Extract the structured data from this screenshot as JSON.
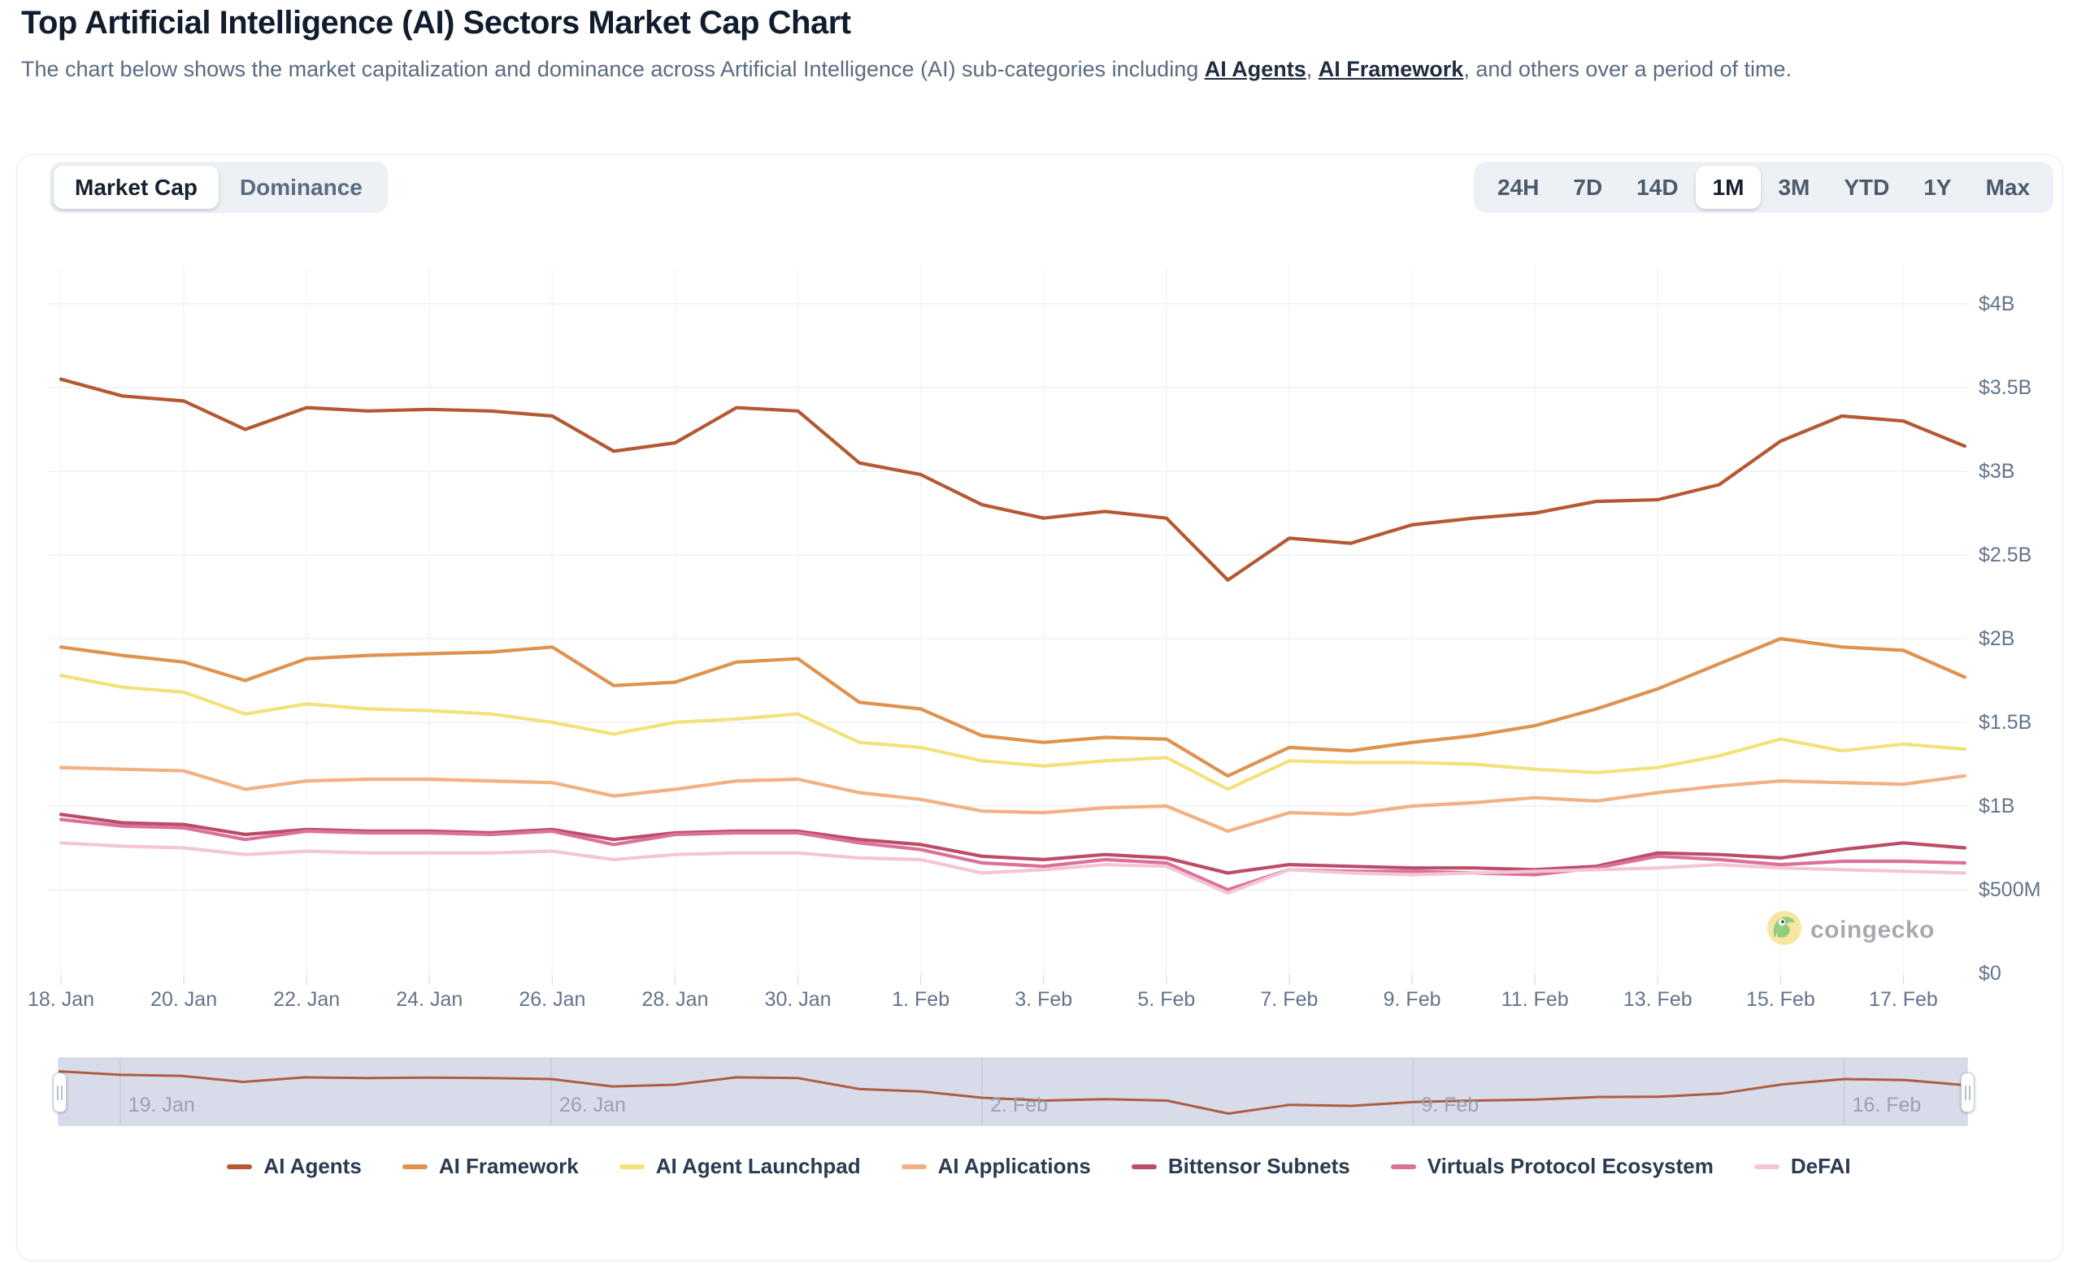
{
  "header": {
    "title": "Top Artificial Intelligence (AI) Sectors Market Cap Chart",
    "subtitle": {
      "part1": "The chart below shows the market capitalization and dominance across Artificial Intelligence (AI) sub-categories including ",
      "link1": "AI Agents",
      "sep": ", ",
      "link2": "AI Framework",
      "part2": ", and others over a period of time."
    }
  },
  "toolbar": {
    "metric_tabs": [
      {
        "label": "Market Cap",
        "active": true
      },
      {
        "label": "Dominance",
        "active": false
      }
    ],
    "ranges": [
      {
        "label": "24H",
        "active": false
      },
      {
        "label": "7D",
        "active": false
      },
      {
        "label": "14D",
        "active": false
      },
      {
        "label": "1M",
        "active": true
      },
      {
        "label": "3M",
        "active": false
      },
      {
        "label": "YTD",
        "active": false
      },
      {
        "label": "1Y",
        "active": false
      },
      {
        "label": "Max",
        "active": false
      }
    ]
  },
  "watermark": {
    "text": "coingecko"
  },
  "chart_data": {
    "type": "line",
    "title": "Top Artificial Intelligence (AI) Sectors Market Cap Chart",
    "unit": "USD market cap (billions)",
    "ylim_billions": [
      0,
      4
    ],
    "grid": true,
    "legend_position": "bottom",
    "y_tick_labels": [
      "$0",
      "$500M",
      "$1B",
      "$1.5B",
      "$2B",
      "$2.5B",
      "$3B",
      "$3.5B",
      "$4B"
    ],
    "y_tick_values_billions": [
      0,
      0.5,
      1,
      1.5,
      2,
      2.5,
      3,
      3.5,
      4
    ],
    "x": [
      "18. Jan",
      "19. Jan",
      "20. Jan",
      "21. Jan",
      "22. Jan",
      "23. Jan",
      "24. Jan",
      "25. Jan",
      "26. Jan",
      "27. Jan",
      "28. Jan",
      "29. Jan",
      "30. Jan",
      "31. Jan",
      "1. Feb",
      "2. Feb",
      "3. Feb",
      "4. Feb",
      "5. Feb",
      "6. Feb",
      "7. Feb",
      "8. Feb",
      "9. Feb",
      "10. Feb",
      "11. Feb",
      "12. Feb",
      "13. Feb",
      "14. Feb",
      "15. Feb",
      "16. Feb",
      "17. Feb",
      "18. Feb"
    ],
    "x_tick_labels": [
      "18. Jan",
      "20. Jan",
      "22. Jan",
      "24. Jan",
      "26. Jan",
      "28. Jan",
      "30. Jan",
      "1. Feb",
      "3. Feb",
      "5. Feb",
      "7. Feb",
      "9. Feb",
      "11. Feb",
      "13. Feb",
      "15. Feb",
      "17. Feb"
    ],
    "x_tick_day_indices": [
      0,
      2,
      4,
      6,
      8,
      10,
      12,
      14,
      16,
      18,
      20,
      22,
      24,
      26,
      28,
      30
    ],
    "series": [
      {
        "name": "AI Agents",
        "color": "#b45933",
        "values": [
          3.55,
          3.45,
          3.42,
          3.25,
          3.38,
          3.36,
          3.37,
          3.36,
          3.33,
          3.12,
          3.17,
          3.38,
          3.36,
          3.05,
          2.98,
          2.8,
          2.72,
          2.76,
          2.72,
          2.35,
          2.6,
          2.57,
          2.68,
          2.72,
          2.75,
          2.82,
          2.83,
          2.92,
          3.18,
          3.33,
          3.3,
          3.15
        ]
      },
      {
        "name": "AI Framework",
        "color": "#de934f",
        "values": [
          1.95,
          1.9,
          1.86,
          1.75,
          1.88,
          1.9,
          1.91,
          1.92,
          1.95,
          1.72,
          1.74,
          1.86,
          1.88,
          1.62,
          1.58,
          1.42,
          1.38,
          1.41,
          1.4,
          1.18,
          1.35,
          1.33,
          1.38,
          1.42,
          1.48,
          1.58,
          1.7,
          1.85,
          2.0,
          1.95,
          1.93,
          1.77
        ]
      },
      {
        "name": "AI Agent Launchpad",
        "color": "#f1e27c",
        "values": [
          1.78,
          1.71,
          1.68,
          1.55,
          1.61,
          1.58,
          1.57,
          1.55,
          1.5,
          1.43,
          1.5,
          1.52,
          1.55,
          1.38,
          1.35,
          1.27,
          1.24,
          1.27,
          1.29,
          1.1,
          1.27,
          1.26,
          1.26,
          1.25,
          1.22,
          1.2,
          1.23,
          1.3,
          1.4,
          1.33,
          1.37,
          1.34
        ]
      },
      {
        "name": "AI Applications",
        "color": "#f2b182",
        "values": [
          1.23,
          1.22,
          1.21,
          1.1,
          1.15,
          1.16,
          1.16,
          1.15,
          1.14,
          1.06,
          1.1,
          1.15,
          1.16,
          1.08,
          1.04,
          0.97,
          0.96,
          0.99,
          1.0,
          0.85,
          0.96,
          0.95,
          1.0,
          1.02,
          1.05,
          1.03,
          1.08,
          1.12,
          1.15,
          1.14,
          1.13,
          1.18
        ]
      },
      {
        "name": "Bittensor Subnets",
        "color": "#bc4d68",
        "values": [
          0.95,
          0.9,
          0.89,
          0.83,
          0.86,
          0.85,
          0.85,
          0.84,
          0.86,
          0.8,
          0.84,
          0.85,
          0.85,
          0.8,
          0.77,
          0.7,
          0.68,
          0.71,
          0.69,
          0.6,
          0.65,
          0.64,
          0.63,
          0.63,
          0.62,
          0.64,
          0.72,
          0.71,
          0.69,
          0.74,
          0.78,
          0.75
        ]
      },
      {
        "name": "Virtuals Protocol Ecosystem",
        "color": "#db719b",
        "values": [
          0.92,
          0.88,
          0.87,
          0.8,
          0.85,
          0.84,
          0.84,
          0.83,
          0.85,
          0.77,
          0.83,
          0.84,
          0.84,
          0.78,
          0.74,
          0.66,
          0.64,
          0.68,
          0.66,
          0.5,
          0.62,
          0.61,
          0.61,
          0.6,
          0.59,
          0.63,
          0.7,
          0.68,
          0.65,
          0.67,
          0.67,
          0.66
        ]
      },
      {
        "name": "DeFAI",
        "color": "#f4c6d5",
        "values": [
          0.78,
          0.76,
          0.75,
          0.71,
          0.73,
          0.72,
          0.72,
          0.72,
          0.73,
          0.68,
          0.71,
          0.72,
          0.72,
          0.69,
          0.68,
          0.6,
          0.62,
          0.65,
          0.64,
          0.48,
          0.62,
          0.6,
          0.59,
          0.6,
          0.61,
          0.62,
          0.63,
          0.65,
          0.63,
          0.62,
          0.61,
          0.6
        ]
      }
    ],
    "brush": {
      "series": "AI Agents",
      "tick_labels": [
        "19. Jan",
        "26. Jan",
        "2. Feb",
        "9. Feb",
        "16. Feb"
      ],
      "tick_day_indices": [
        1,
        8,
        15,
        22,
        29
      ]
    },
    "colors": {
      "grid_line": "#eef1f6",
      "vertical_grid": "#f3f5f9",
      "axis_text": "#64748b",
      "brush_fill": "#d8dbe9",
      "brush_grid": "#c5cadc",
      "brush_line": "#ad5e44"
    }
  }
}
